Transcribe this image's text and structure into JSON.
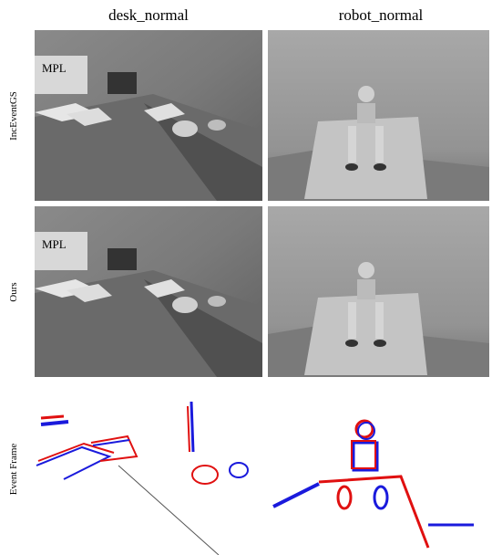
{
  "column_headers": [
    "desk_normal",
    "robot_normal"
  ],
  "row_labels": [
    "IncEventGS",
    "Ours",
    "Event Frame"
  ]
}
